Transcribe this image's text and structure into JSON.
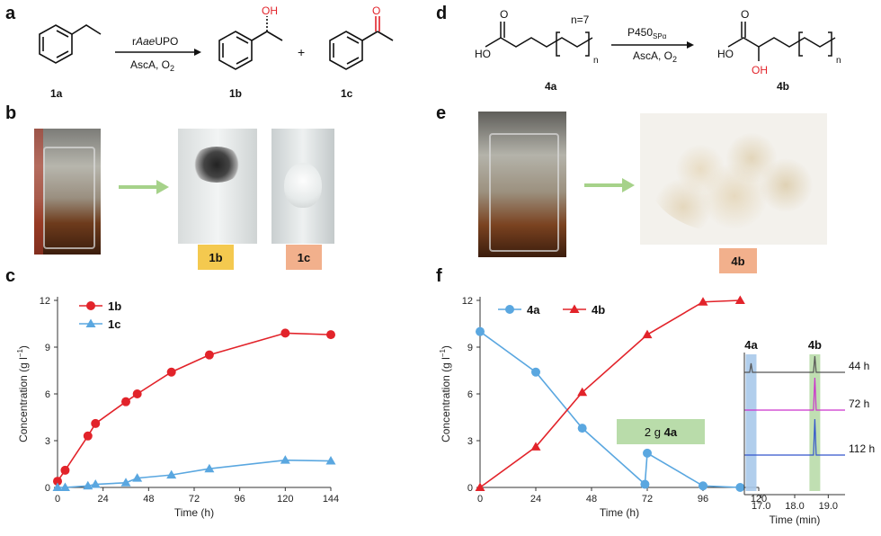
{
  "panels": {
    "a": "a",
    "b": "b",
    "c": "c",
    "d": "d",
    "e": "e",
    "f": "f"
  },
  "scheme_a": {
    "enzyme_prefix": "r",
    "enzyme_italic": "Aae",
    "enzyme_suffix": "UPO",
    "conditions": "AscA, O",
    "conditions_sub": "2",
    "plus": "+",
    "oh": "OH",
    "o": "O",
    "labels": [
      "1a",
      "1b",
      "1c"
    ]
  },
  "scheme_d": {
    "enzyme": "P450",
    "enzyme_sub": "SPα",
    "conditions": "AscA, O",
    "conditions_sub": "2",
    "n_eq": "n=7",
    "n": "n",
    "ho": "HO",
    "o": "O",
    "oh": "OH",
    "labels": [
      "4a",
      "4b"
    ]
  },
  "photos_b": {
    "labels": [
      "1b",
      "1c"
    ],
    "colors": [
      "#f4c94f",
      "#f2b08c"
    ]
  },
  "photos_e": {
    "labels": [
      "4b"
    ],
    "colors": [
      "#f2b08c"
    ]
  },
  "colors": {
    "red": "#e2232a",
    "blue": "#5aa7e0",
    "arrow_green": "#a6d28a",
    "box_green": "#b9dcaa"
  },
  "chart_data": [
    {
      "type": "line",
      "panel": "c",
      "xlabel": "Time (h)",
      "ylabel": "Concentration (g l",
      "ylabel_sup": "−1",
      "ylabel_end": ")",
      "xlim": [
        0,
        144
      ],
      "ylim": [
        0,
        12
      ],
      "xticks": [
        0,
        24,
        48,
        72,
        96,
        120,
        144
      ],
      "yticks": [
        0,
        3,
        6,
        9,
        12
      ],
      "legend_position": "top-left",
      "series": [
        {
          "name": "1b",
          "marker": "circle",
          "color": "#e2232a",
          "x": [
            0,
            4,
            16,
            20,
            36,
            42,
            60,
            80,
            120,
            144
          ],
          "y": [
            0.4,
            1.1,
            3.3,
            4.1,
            5.5,
            6.0,
            7.4,
            8.5,
            9.9,
            9.8
          ]
        },
        {
          "name": "1c",
          "marker": "triangle",
          "color": "#5aa7e0",
          "x": [
            0,
            4,
            16,
            20,
            36,
            42,
            60,
            80,
            120,
            144
          ],
          "y": [
            0.0,
            0.0,
            0.1,
            0.2,
            0.3,
            0.6,
            0.8,
            1.2,
            1.75,
            1.7
          ]
        }
      ]
    },
    {
      "type": "line",
      "panel": "f",
      "xlabel": "Time (h)",
      "ylabel": "Concentration (g l",
      "ylabel_sup": "−1",
      "ylabel_end": ")",
      "xlim": [
        0,
        120
      ],
      "ylim": [
        0,
        12
      ],
      "xticks": [
        0,
        24,
        48,
        72,
        96,
        120
      ],
      "yticks": [
        0,
        3,
        6,
        9,
        12
      ],
      "legend_position": "top-left",
      "annotation": {
        "prefix": "2 g ",
        "bold": "4a",
        "x": 72
      },
      "series": [
        {
          "name": "4a",
          "marker": "circle",
          "color": "#5aa7e0",
          "x": [
            0,
            24,
            44,
            71,
            72,
            96,
            112
          ],
          "y": [
            10.0,
            7.4,
            3.8,
            0.2,
            2.2,
            0.1,
            0.0
          ]
        },
        {
          "name": "4b",
          "marker": "triangle",
          "color": "#e2232a",
          "x": [
            0,
            24,
            44,
            72,
            96,
            112
          ],
          "y": [
            0.0,
            2.6,
            6.1,
            9.8,
            11.9,
            12.0
          ]
        }
      ]
    },
    {
      "type": "line",
      "panel": "f-inset",
      "xlabel": "Time (min)",
      "xlim": [
        16.5,
        19.5
      ],
      "xticks": [
        17.0,
        18.0,
        19.0
      ],
      "peak_labels": [
        "4a",
        "4b"
      ],
      "peak_positions": [
        16.7,
        18.6
      ],
      "traces": [
        {
          "name": "44 h",
          "color": "#555555"
        },
        {
          "name": "72 h",
          "color": "#cc33cc"
        },
        {
          "name": "112 h",
          "color": "#3355cc"
        }
      ]
    }
  ]
}
